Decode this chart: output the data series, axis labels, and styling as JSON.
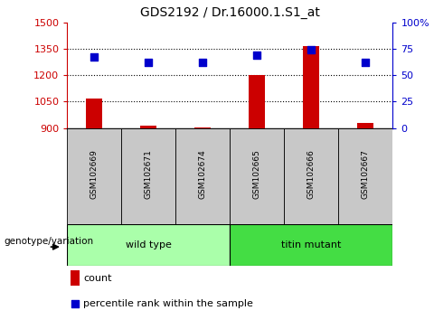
{
  "title": "GDS2192 / Dr.16000.1.S1_at",
  "samples": [
    "GSM102669",
    "GSM102671",
    "GSM102674",
    "GSM102665",
    "GSM102666",
    "GSM102667"
  ],
  "counts": [
    1070,
    915,
    905,
    1200,
    1365,
    930
  ],
  "percentile_ranks": [
    67,
    62,
    62,
    69,
    74,
    62
  ],
  "ylim_left": [
    900,
    1500
  ],
  "ylim_right": [
    0,
    100
  ],
  "yticks_left": [
    900,
    1050,
    1200,
    1350,
    1500
  ],
  "yticks_right": [
    0,
    25,
    50,
    75,
    100
  ],
  "ytick_labels_left": [
    "900",
    "1050",
    "1200",
    "1350",
    "1500"
  ],
  "ytick_labels_right": [
    "0",
    "25",
    "50",
    "75",
    "100%"
  ],
  "bar_color": "#cc0000",
  "dot_color": "#0000cc",
  "groups": [
    {
      "label": "wild type",
      "indices": [
        0,
        1,
        2
      ],
      "color": "#90ee90"
    },
    {
      "label": "titin mutant",
      "indices": [
        3,
        4,
        5
      ],
      "color": "#00cc44"
    }
  ],
  "group_label": "genotype/variation",
  "legend_items": [
    {
      "label": "count",
      "color": "#cc0000"
    },
    {
      "label": "percentile rank within the sample",
      "color": "#0000cc"
    }
  ],
  "x_positions": [
    0,
    1,
    2,
    3,
    4,
    5
  ],
  "bar_width": 0.3,
  "dot_size": 40,
  "bar_color_hex": "#cc0000",
  "dot_color_hex": "#0000cc",
  "axis_left_color": "#cc0000",
  "axis_right_color": "#0000cc",
  "label_area_color": "#c8c8c8",
  "group1_color": "#aaffaa",
  "group2_color": "#44dd44"
}
